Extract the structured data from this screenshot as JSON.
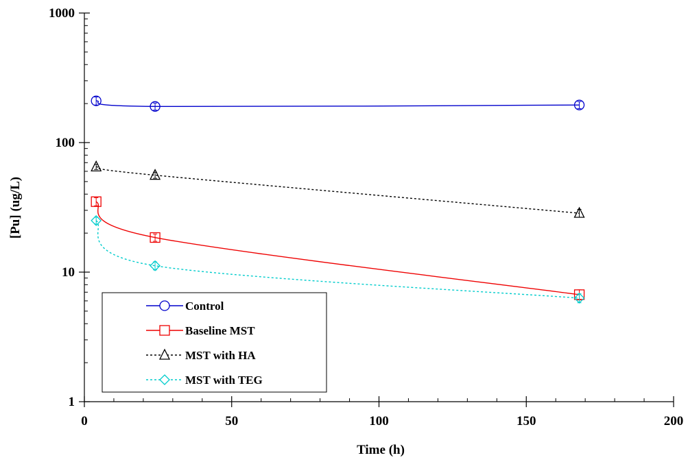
{
  "chart_data": {
    "type": "line",
    "title": "",
    "xlabel": "Time (h)",
    "ylabel": "[Pu] (ug/L)",
    "xlim": [
      0,
      200
    ],
    "ylim": [
      1,
      1000
    ],
    "yscale": "log",
    "x_ticks": [
      "0",
      "50",
      "100",
      "150",
      "200"
    ],
    "y_ticks": [
      "1",
      "10",
      "100",
      "1000"
    ],
    "grid": false,
    "legend_position": "bottom-left",
    "series": [
      {
        "name": "Control",
        "color": "#0000cc",
        "marker": "circle",
        "line_style": "solid",
        "x": [
          4,
          24,
          168
        ],
        "y": [
          210,
          190,
          195
        ],
        "error": [
          15,
          12,
          12
        ]
      },
      {
        "name": "Baseline MST",
        "color": "#ee0000",
        "marker": "square",
        "line_style": "solid",
        "x": [
          4,
          24,
          168
        ],
        "y": [
          35,
          18.5,
          6.7
        ],
        "error": [
          2.5,
          1.2,
          0.6
        ]
      },
      {
        "name": "MST with HA",
        "color": "#000000",
        "marker": "triangle",
        "line_style": "dotted",
        "x": [
          4,
          24,
          168
        ],
        "y": [
          65,
          56,
          28.5
        ],
        "error": [
          3,
          3,
          2
        ]
      },
      {
        "name": "MST with TEG",
        "color": "#00cccc",
        "marker": "diamond",
        "line_style": "dotted",
        "x": [
          4,
          24,
          168
        ],
        "y": [
          25,
          11.2,
          6.3
        ],
        "error": [
          1.5,
          0.8,
          0.5
        ]
      }
    ]
  }
}
